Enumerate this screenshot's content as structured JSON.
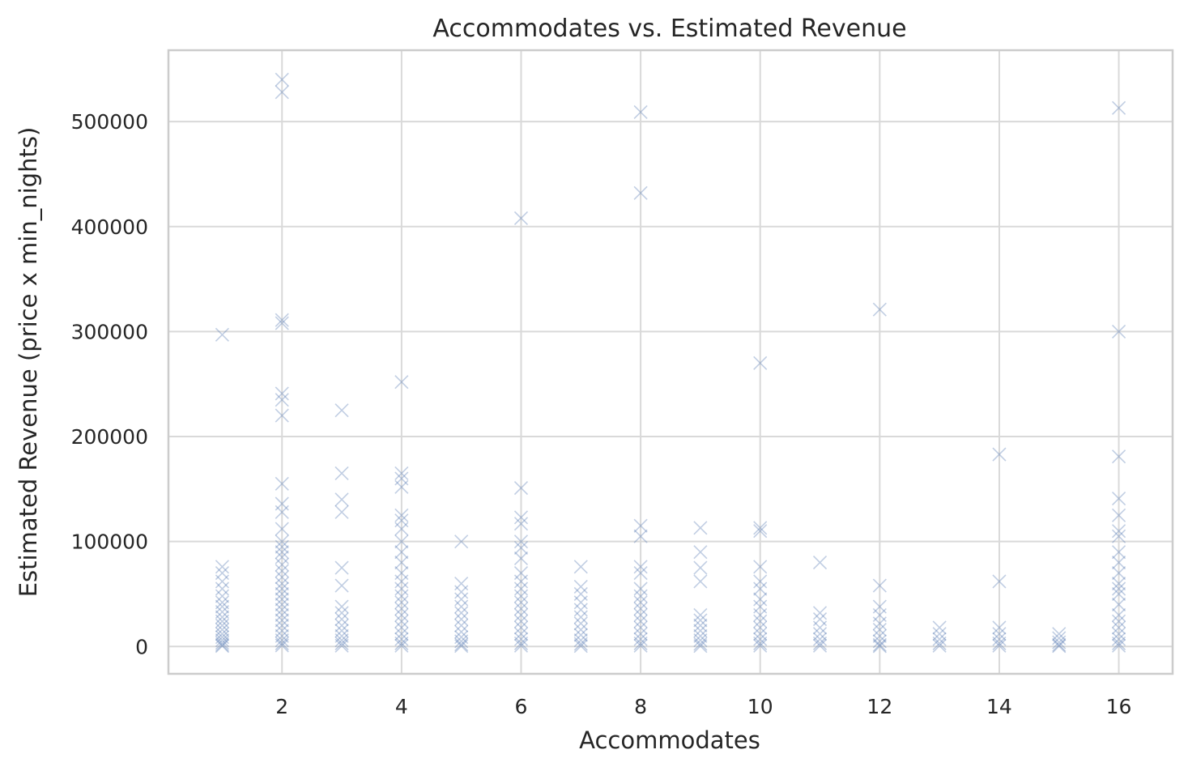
{
  "chart_data": {
    "type": "scatter",
    "title": "Accommodates vs. Estimated Revenue",
    "xlabel": "Accommodates",
    "ylabel": "Estimated Revenue (price x min_nights)",
    "xlim": [
      0.1,
      16.9
    ],
    "ylim": [
      -26000,
      568000
    ],
    "xticks": [
      2,
      4,
      6,
      8,
      10,
      12,
      14,
      16
    ],
    "yticks": [
      0,
      100000,
      200000,
      300000,
      400000,
      500000
    ],
    "grid": true,
    "marker": "x",
    "color": "#4c72b0",
    "point_opacity": 0.35,
    "series": [
      {
        "points": [
          [
            1,
            297000
          ],
          [
            1,
            76000
          ],
          [
            1,
            70000
          ],
          [
            1,
            62000
          ],
          [
            1,
            55000
          ],
          [
            1,
            48000
          ],
          [
            1,
            42000
          ],
          [
            1,
            38000
          ],
          [
            1,
            33000
          ],
          [
            1,
            28000
          ],
          [
            1,
            24000
          ],
          [
            1,
            20000
          ],
          [
            1,
            16000
          ],
          [
            1,
            12000
          ],
          [
            1,
            9000
          ],
          [
            1,
            6000
          ],
          [
            1,
            3500
          ],
          [
            1,
            1500
          ],
          [
            1,
            500
          ],
          [
            2,
            540000
          ],
          [
            2,
            528000
          ],
          [
            2,
            311000
          ],
          [
            2,
            308000
          ],
          [
            2,
            241000
          ],
          [
            2,
            235000
          ],
          [
            2,
            220000
          ],
          [
            2,
            155000
          ],
          [
            2,
            136000
          ],
          [
            2,
            128000
          ],
          [
            2,
            112000
          ],
          [
            2,
            100000
          ],
          [
            2,
            95000
          ],
          [
            2,
            90000
          ],
          [
            2,
            85000
          ],
          [
            2,
            78000
          ],
          [
            2,
            72000
          ],
          [
            2,
            66000
          ],
          [
            2,
            60000
          ],
          [
            2,
            55000
          ],
          [
            2,
            50000
          ],
          [
            2,
            45000
          ],
          [
            2,
            40000
          ],
          [
            2,
            35000
          ],
          [
            2,
            30000
          ],
          [
            2,
            25000
          ],
          [
            2,
            20000
          ],
          [
            2,
            15000
          ],
          [
            2,
            10000
          ],
          [
            2,
            6000
          ],
          [
            2,
            3000
          ],
          [
            2,
            1000
          ],
          [
            3,
            225000
          ],
          [
            3,
            165000
          ],
          [
            3,
            140000
          ],
          [
            3,
            128000
          ],
          [
            3,
            75000
          ],
          [
            3,
            58000
          ],
          [
            3,
            38000
          ],
          [
            3,
            32000
          ],
          [
            3,
            26000
          ],
          [
            3,
            20000
          ],
          [
            3,
            15000
          ],
          [
            3,
            10000
          ],
          [
            3,
            6000
          ],
          [
            3,
            3000
          ],
          [
            3,
            800
          ],
          [
            4,
            252000
          ],
          [
            4,
            165000
          ],
          [
            4,
            160000
          ],
          [
            4,
            152000
          ],
          [
            4,
            125000
          ],
          [
            4,
            120000
          ],
          [
            4,
            112000
          ],
          [
            4,
            100000
          ],
          [
            4,
            90000
          ],
          [
            4,
            80000
          ],
          [
            4,
            70000
          ],
          [
            4,
            62000
          ],
          [
            4,
            55000
          ],
          [
            4,
            48000
          ],
          [
            4,
            42000
          ],
          [
            4,
            36000
          ],
          [
            4,
            30000
          ],
          [
            4,
            24000
          ],
          [
            4,
            18000
          ],
          [
            4,
            12000
          ],
          [
            4,
            7000
          ],
          [
            4,
            3000
          ],
          [
            4,
            800
          ],
          [
            5,
            100000
          ],
          [
            5,
            60000
          ],
          [
            5,
            52000
          ],
          [
            5,
            45000
          ],
          [
            5,
            38000
          ],
          [
            5,
            32000
          ],
          [
            5,
            26000
          ],
          [
            5,
            20000
          ],
          [
            5,
            14000
          ],
          [
            5,
            9000
          ],
          [
            5,
            5000
          ],
          [
            5,
            2000
          ],
          [
            5,
            500
          ],
          [
            6,
            408000
          ],
          [
            6,
            151000
          ],
          [
            6,
            123000
          ],
          [
            6,
            117000
          ],
          [
            6,
            100000
          ],
          [
            6,
            94000
          ],
          [
            6,
            84000
          ],
          [
            6,
            70000
          ],
          [
            6,
            62000
          ],
          [
            6,
            55000
          ],
          [
            6,
            48000
          ],
          [
            6,
            42000
          ],
          [
            6,
            36000
          ],
          [
            6,
            30000
          ],
          [
            6,
            24000
          ],
          [
            6,
            18000
          ],
          [
            6,
            12000
          ],
          [
            6,
            7000
          ],
          [
            6,
            3000
          ],
          [
            6,
            800
          ],
          [
            7,
            76000
          ],
          [
            7,
            57000
          ],
          [
            7,
            50000
          ],
          [
            7,
            42000
          ],
          [
            7,
            35000
          ],
          [
            7,
            28000
          ],
          [
            7,
            22000
          ],
          [
            7,
            16000
          ],
          [
            7,
            11000
          ],
          [
            7,
            6000
          ],
          [
            7,
            2500
          ],
          [
            7,
            500
          ],
          [
            8,
            509000
          ],
          [
            8,
            432000
          ],
          [
            8,
            115000
          ],
          [
            8,
            105000
          ],
          [
            8,
            76000
          ],
          [
            8,
            70000
          ],
          [
            8,
            55000
          ],
          [
            8,
            48000
          ],
          [
            8,
            42000
          ],
          [
            8,
            36000
          ],
          [
            8,
            30000
          ],
          [
            8,
            24000
          ],
          [
            8,
            18000
          ],
          [
            8,
            12000
          ],
          [
            8,
            7000
          ],
          [
            8,
            3000
          ],
          [
            8,
            800
          ],
          [
            9,
            113000
          ],
          [
            9,
            90000
          ],
          [
            9,
            75000
          ],
          [
            9,
            62000
          ],
          [
            9,
            30000
          ],
          [
            9,
            25000
          ],
          [
            9,
            20000
          ],
          [
            9,
            15000
          ],
          [
            9,
            10000
          ],
          [
            9,
            6000
          ],
          [
            9,
            2500
          ],
          [
            9,
            500
          ],
          [
            10,
            270000
          ],
          [
            10,
            113000
          ],
          [
            10,
            110000
          ],
          [
            10,
            76000
          ],
          [
            10,
            62000
          ],
          [
            10,
            55000
          ],
          [
            10,
            45000
          ],
          [
            10,
            38000
          ],
          [
            10,
            30000
          ],
          [
            10,
            24000
          ],
          [
            10,
            18000
          ],
          [
            10,
            12000
          ],
          [
            10,
            7000
          ],
          [
            10,
            3000
          ],
          [
            10,
            800
          ],
          [
            11,
            80000
          ],
          [
            11,
            32000
          ],
          [
            11,
            26000
          ],
          [
            11,
            18000
          ],
          [
            11,
            12000
          ],
          [
            11,
            7000
          ],
          [
            11,
            3000
          ],
          [
            11,
            800
          ],
          [
            12,
            321000
          ],
          [
            12,
            58000
          ],
          [
            12,
            38000
          ],
          [
            12,
            30000
          ],
          [
            12,
            22000
          ],
          [
            12,
            16000
          ],
          [
            12,
            10000
          ],
          [
            12,
            5000
          ],
          [
            12,
            1500
          ],
          [
            12,
            300
          ],
          [
            13,
            18000
          ],
          [
            13,
            12000
          ],
          [
            13,
            7000
          ],
          [
            13,
            3000
          ],
          [
            13,
            800
          ],
          [
            14,
            183000
          ],
          [
            14,
            62000
          ],
          [
            14,
            18000
          ],
          [
            14,
            12000
          ],
          [
            14,
            7000
          ],
          [
            14,
            3000
          ],
          [
            14,
            800
          ],
          [
            15,
            12000
          ],
          [
            15,
            8000
          ],
          [
            15,
            4000
          ],
          [
            15,
            1500
          ],
          [
            15,
            400
          ],
          [
            16,
            513000
          ],
          [
            16,
            300000
          ],
          [
            16,
            181000
          ],
          [
            16,
            141000
          ],
          [
            16,
            125000
          ],
          [
            16,
            110000
          ],
          [
            16,
            105000
          ],
          [
            16,
            90000
          ],
          [
            16,
            80000
          ],
          [
            16,
            70000
          ],
          [
            16,
            60000
          ],
          [
            16,
            55000
          ],
          [
            16,
            50000
          ],
          [
            16,
            40000
          ],
          [
            16,
            30000
          ],
          [
            16,
            24000
          ],
          [
            16,
            18000
          ],
          [
            16,
            12000
          ],
          [
            16,
            7000
          ],
          [
            16,
            3000
          ],
          [
            16,
            800
          ]
        ]
      }
    ]
  }
}
